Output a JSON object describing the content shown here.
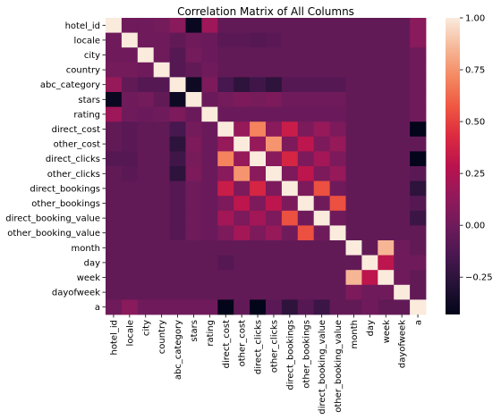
{
  "chart_data": {
    "type": "heatmap",
    "title": "Correlation Matrix of All Columns",
    "labels": [
      "hotel_id",
      "locale",
      "city",
      "country",
      "abc_category",
      "stars",
      "rating",
      "direct_cost",
      "other_cost",
      "direct_clicks",
      "other_clicks",
      "direct_bookings",
      "other_bookings",
      "direct_booking_value",
      "other_booking_value",
      "month",
      "day",
      "week",
      "dayofweek",
      "a"
    ],
    "matrix": [
      [
        1.0,
        0.0,
        0.0,
        0.02,
        0.1,
        -0.4,
        0.18,
        -0.05,
        -0.05,
        -0.05,
        -0.05,
        -0.05,
        -0.05,
        -0.05,
        -0.05,
        -0.05,
        -0.05,
        -0.05,
        -0.05,
        0.1
      ],
      [
        0.0,
        1.0,
        0.0,
        0.0,
        -0.05,
        0.0,
        -0.02,
        -0.08,
        -0.08,
        -0.1,
        -0.08,
        -0.05,
        -0.05,
        -0.05,
        -0.05,
        -0.05,
        -0.05,
        -0.05,
        -0.05,
        0.1
      ],
      [
        0.0,
        0.0,
        1.0,
        0.0,
        -0.1,
        0.02,
        -0.02,
        -0.05,
        -0.05,
        -0.05,
        -0.05,
        -0.05,
        -0.05,
        -0.05,
        -0.05,
        -0.05,
        -0.05,
        -0.05,
        -0.05,
        0.0
      ],
      [
        0.02,
        0.02,
        0.0,
        1.0,
        -0.1,
        -0.05,
        0.0,
        -0.05,
        -0.05,
        -0.05,
        -0.05,
        -0.05,
        -0.05,
        -0.05,
        -0.05,
        -0.05,
        -0.05,
        -0.05,
        -0.05,
        0.0
      ],
      [
        0.15,
        -0.05,
        -0.1,
        -0.1,
        1.0,
        -0.38,
        0.05,
        -0.15,
        -0.25,
        -0.18,
        -0.25,
        -0.1,
        -0.1,
        -0.1,
        -0.1,
        -0.05,
        -0.05,
        -0.05,
        -0.05,
        0.0
      ],
      [
        -0.4,
        0.0,
        0.02,
        -0.05,
        -0.38,
        1.0,
        -0.02,
        0.02,
        0.05,
        0.03,
        0.05,
        0.0,
        0.0,
        0.0,
        0.0,
        -0.05,
        -0.05,
        -0.05,
        -0.05,
        0.0
      ],
      [
        0.18,
        0.0,
        -0.02,
        0.0,
        0.05,
        -0.02,
        1.0,
        -0.02,
        -0.02,
        -0.02,
        -0.02,
        -0.02,
        -0.02,
        -0.02,
        -0.02,
        -0.05,
        -0.05,
        -0.05,
        -0.05,
        0.0
      ],
      [
        -0.05,
        -0.08,
        -0.05,
        -0.05,
        -0.15,
        0.02,
        -0.02,
        1.0,
        0.15,
        0.7,
        0.1,
        0.35,
        0.05,
        0.15,
        0.05,
        -0.05,
        -0.05,
        -0.05,
        -0.05,
        -0.45
      ],
      [
        -0.05,
        -0.08,
        -0.05,
        -0.05,
        -0.25,
        0.05,
        -0.02,
        0.15,
        1.0,
        0.15,
        0.75,
        0.05,
        0.3,
        0.05,
        0.15,
        -0.05,
        -0.05,
        -0.05,
        -0.05,
        -0.05
      ],
      [
        -0.1,
        -0.1,
        -0.05,
        -0.05,
        -0.18,
        0.03,
        -0.02,
        0.7,
        0.15,
        1.0,
        0.1,
        0.4,
        0.05,
        0.2,
        0.05,
        -0.05,
        -0.05,
        -0.05,
        -0.05,
        -0.45
      ],
      [
        -0.05,
        -0.08,
        -0.05,
        -0.05,
        -0.25,
        0.05,
        -0.02,
        0.1,
        0.75,
        0.1,
        1.0,
        0.05,
        0.3,
        0.05,
        0.15,
        -0.05,
        -0.05,
        -0.05,
        -0.05,
        -0.08
      ],
      [
        -0.05,
        -0.05,
        -0.05,
        -0.05,
        -0.1,
        0.0,
        -0.02,
        0.35,
        0.05,
        0.4,
        0.05,
        1.0,
        0.05,
        0.55,
        0.0,
        -0.05,
        -0.05,
        -0.05,
        -0.05,
        -0.25
      ],
      [
        -0.05,
        -0.05,
        -0.05,
        -0.05,
        -0.1,
        0.0,
        -0.02,
        0.05,
        0.3,
        0.05,
        0.3,
        0.05,
        1.0,
        0.0,
        0.55,
        -0.05,
        -0.05,
        -0.05,
        -0.05,
        -0.1
      ],
      [
        -0.05,
        -0.05,
        -0.05,
        -0.05,
        -0.1,
        0.0,
        -0.02,
        0.2,
        0.05,
        0.2,
        0.05,
        0.55,
        0.0,
        1.0,
        0.0,
        -0.05,
        -0.05,
        -0.05,
        -0.05,
        -0.2
      ],
      [
        -0.05,
        -0.05,
        -0.05,
        -0.05,
        -0.1,
        0.0,
        -0.02,
        0.05,
        0.2,
        0.05,
        0.15,
        0.0,
        0.55,
        0.0,
        1.0,
        -0.05,
        -0.05,
        -0.05,
        -0.05,
        -0.05
      ],
      [
        -0.05,
        -0.05,
        -0.05,
        -0.05,
        -0.05,
        -0.05,
        -0.05,
        -0.05,
        -0.05,
        -0.05,
        -0.05,
        -0.05,
        -0.05,
        -0.05,
        -0.05,
        1.0,
        -0.05,
        0.85,
        0.0,
        -0.05
      ],
      [
        -0.05,
        -0.05,
        -0.05,
        -0.05,
        -0.05,
        -0.05,
        -0.05,
        -0.1,
        -0.05,
        -0.05,
        -0.05,
        -0.05,
        -0.05,
        -0.05,
        -0.05,
        -0.05,
        1.0,
        0.3,
        0.0,
        0.0
      ],
      [
        -0.05,
        -0.05,
        -0.05,
        -0.05,
        -0.05,
        -0.05,
        -0.05,
        -0.05,
        -0.05,
        -0.05,
        -0.05,
        -0.05,
        -0.05,
        -0.05,
        -0.05,
        0.85,
        0.3,
        1.0,
        0.0,
        -0.05
      ],
      [
        -0.05,
        -0.05,
        -0.05,
        -0.05,
        -0.05,
        -0.05,
        -0.05,
        -0.05,
        -0.05,
        -0.05,
        -0.05,
        -0.05,
        -0.05,
        -0.05,
        -0.05,
        0.05,
        0.0,
        0.0,
        1.0,
        -0.05
      ],
      [
        0.0,
        0.1,
        0.0,
        0.0,
        0.0,
        0.0,
        0.0,
        -0.45,
        -0.05,
        -0.45,
        -0.08,
        -0.25,
        -0.1,
        -0.2,
        -0.05,
        -0.05,
        0.0,
        -0.05,
        -0.05,
        1.0
      ]
    ],
    "colorbar": {
      "ticks": [
        -0.25,
        0.0,
        0.25,
        0.5,
        0.75,
        1.0
      ],
      "min": -0.43,
      "max": 1.0
    },
    "colormap": "rocket",
    "grid": false,
    "legend": "right"
  }
}
